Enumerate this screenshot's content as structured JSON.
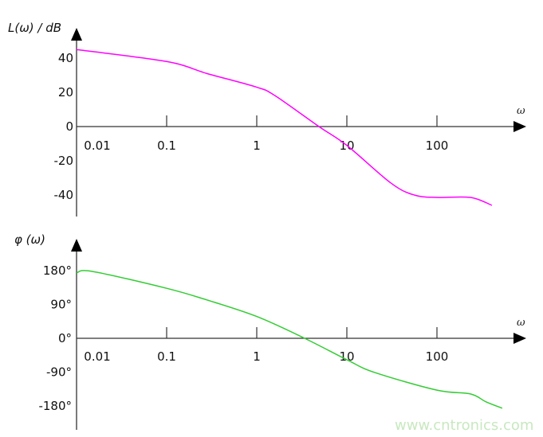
{
  "chart_data": [
    {
      "type": "line",
      "ylabel": "L(ω) / dB",
      "xlabel": "ω",
      "x_scale": "log",
      "xlim": [
        0.01,
        1000
      ],
      "x_ticks": [
        "0.01",
        "0.1",
        "1",
        "10",
        "100"
      ],
      "x_tick_values": [
        0.01,
        0.1,
        1,
        10,
        100
      ],
      "ylim": [
        -52,
        58
      ],
      "y_ticks": [
        "40",
        "20",
        "0",
        "-20",
        "-40"
      ],
      "y_tick_values": [
        40,
        20,
        0,
        -20,
        -40
      ],
      "grid": false,
      "series": [
        {
          "color": "#ff00ff",
          "x": [
            0.01,
            0.1,
            0.28,
            1,
            1.6,
            4.9,
            10,
            30.8,
            56,
            100,
            235,
            407
          ],
          "y": [
            45,
            38,
            31,
            23,
            18,
            0,
            -11,
            -33,
            -40,
            -41.4,
            -41.4,
            -46
          ]
        }
      ]
    },
    {
      "type": "line",
      "ylabel": "φ (ω)",
      "xlabel": "ω",
      "x_scale": "log",
      "xlim": [
        0.01,
        1000
      ],
      "x_ticks": [
        "0.01",
        "0.1",
        "1",
        "10",
        "100"
      ],
      "x_tick_values": [
        0.01,
        0.1,
        1,
        10,
        100
      ],
      "ylim": [
        -225,
        230
      ],
      "y_ticks": [
        "180°",
        "90°",
        "0°",
        "-90°",
        "-180°"
      ],
      "y_tick_values": [
        180,
        90,
        0,
        -90,
        -180
      ],
      "grid": false,
      "series": [
        {
          "color": "#33cc33",
          "x": [
            0.01,
            0.015,
            0.1,
            0.28,
            1,
            3.4,
            10,
            20.4,
            100,
            235,
            350,
            530
          ],
          "y": [
            174,
            178,
            133,
            102,
            58,
            0,
            -57,
            -91,
            -138,
            -148,
            -169,
            -186
          ]
        }
      ]
    }
  ],
  "watermark": "www.cntronics.com"
}
